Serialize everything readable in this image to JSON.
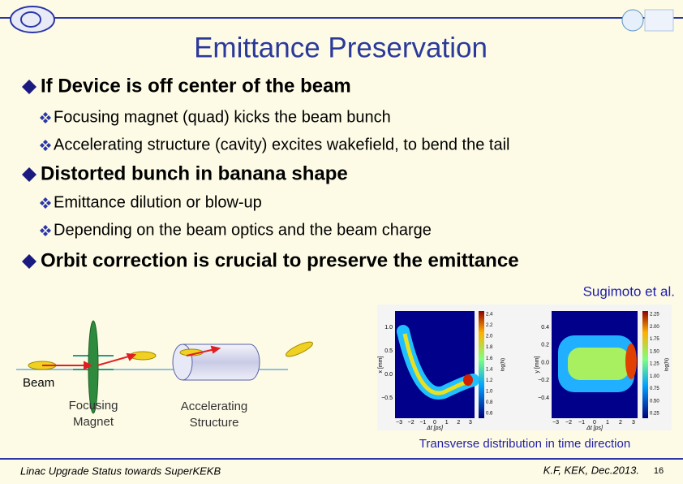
{
  "header": {
    "title": "Emittance Preservation"
  },
  "bullets": [
    {
      "text": "If Device is off center of the beam",
      "sub": [
        "Focusing magnet (quad) kicks the beam bunch",
        "Accelerating structure (cavity) excites wakefield, to bend the tail"
      ]
    },
    {
      "text": "Distorted bunch in banana shape",
      "sub": [
        "Emittance dilution or blow-up",
        "Depending on the beam optics and the beam charge"
      ]
    },
    {
      "text": "Orbit correction is crucial to preserve the emittance",
      "sub": []
    }
  ],
  "diagram": {
    "beam": "Beam",
    "quad": "Focusing Magnet",
    "structure": "Accelerating Structure"
  },
  "plots": {
    "credit": "Sugimoto et al.",
    "caption": "Transverse distribution in time direction",
    "panels": [
      {
        "ylabel": "x [mm]",
        "yticks": [
          "1.0",
          "0.5",
          "0.0",
          "−0.5"
        ],
        "xticks": [
          "−3",
          "−2",
          "−1",
          "0",
          "1",
          "2",
          "3"
        ],
        "xlabel": "Δt [ps]",
        "cbar_label": "log(N)",
        "cbar_ticks": [
          "2.4",
          "2.2",
          "2.0",
          "1.8",
          "1.6",
          "1.4",
          "1.2",
          "1.0",
          "0.8",
          "0.6"
        ]
      },
      {
        "ylabel": "y [mm]",
        "yticks": [
          "0.4",
          "0.2",
          "0.0",
          "−0.2",
          "−0.4"
        ],
        "xticks": [
          "−3",
          "−2",
          "−1",
          "0",
          "1",
          "2",
          "3"
        ],
        "xlabel": "Δt [ps]",
        "cbar_label": "log(N)",
        "cbar_ticks": [
          "2.25",
          "2.00",
          "1.75",
          "1.50",
          "1.25",
          "1.00",
          "0.75",
          "0.50",
          "0.25"
        ]
      }
    ]
  },
  "footer": {
    "left": "Linac Upgrade Status towards SuperKEKB",
    "right": "K.F, KEK, Dec.2013.",
    "page": "16"
  }
}
